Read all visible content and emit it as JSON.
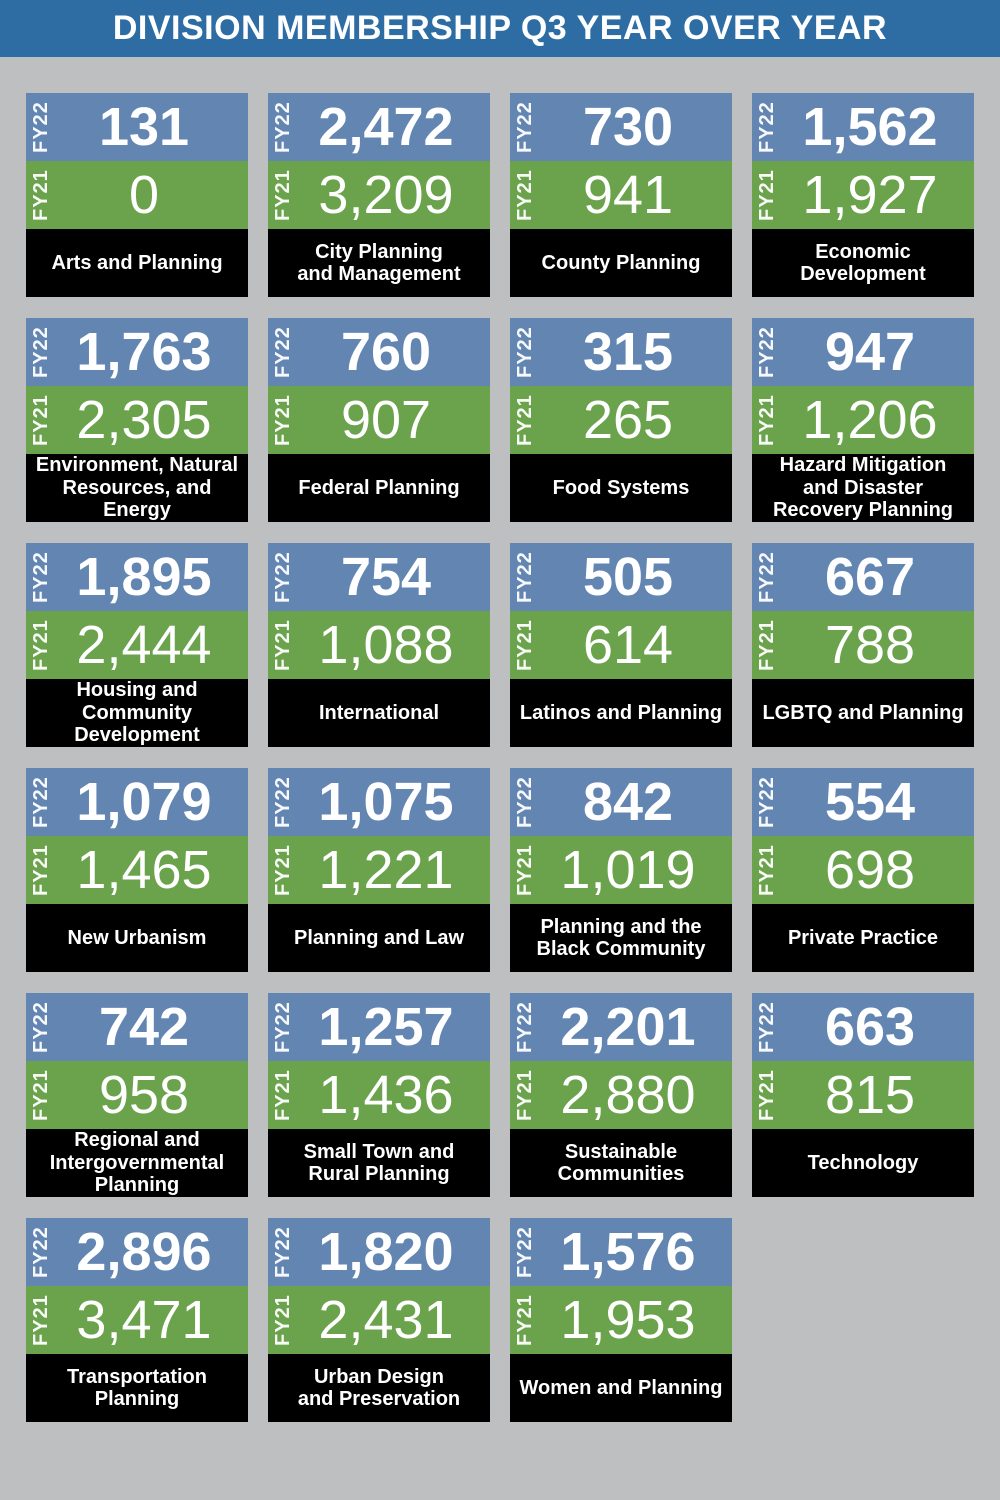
{
  "header": {
    "title": "DIVISION MEMBERSHIP Q3 YEAR OVER YEAR"
  },
  "series_labels": {
    "fy22": "FY22",
    "fy21": "FY21"
  },
  "colors": {
    "background": "#bdbfc1",
    "header_bar": "#2d6da4",
    "fy22_band": "#6285b1",
    "fy21_band": "#6ba24c",
    "name_band": "#000000",
    "text": "#ffffff"
  },
  "chart_data": {
    "type": "table",
    "title": "DIVISION MEMBERSHIP Q3 YEAR OVER YEAR",
    "series": [
      "FY22",
      "FY21"
    ],
    "layout": "4-column grid of cards; each card: FY22 value on blue band, FY21 value on green band, division name on black band",
    "rows": [
      {
        "name": "Arts and Planning",
        "display_name": "Arts and Planning",
        "fy22": 131,
        "fy21": 0,
        "fy22_display": "131",
        "fy21_display": "0"
      },
      {
        "name": "City Planning and Management",
        "display_name": "City Planning\nand Management",
        "fy22": 2472,
        "fy21": 3209,
        "fy22_display": "2,472",
        "fy21_display": "3,209"
      },
      {
        "name": "County Planning",
        "display_name": "County Planning",
        "fy22": 730,
        "fy21": 941,
        "fy22_display": "730",
        "fy21_display": "941"
      },
      {
        "name": "Economic Development",
        "display_name": "Economic\nDevelopment",
        "fy22": 1562,
        "fy21": 1927,
        "fy22_display": "1,562",
        "fy21_display": "1,927"
      },
      {
        "name": "Environment, Natural Resources, and Energy",
        "display_name": "Environment, Natural\nResources, and Energy",
        "fy22": 1763,
        "fy21": 2305,
        "fy22_display": "1,763",
        "fy21_display": "2,305"
      },
      {
        "name": "Federal Planning",
        "display_name": "Federal Planning",
        "fy22": 760,
        "fy21": 907,
        "fy22_display": "760",
        "fy21_display": "907"
      },
      {
        "name": "Food Systems",
        "display_name": "Food Systems",
        "fy22": 315,
        "fy21": 265,
        "fy22_display": "315",
        "fy21_display": "265"
      },
      {
        "name": "Hazard Mitigation and Disaster Recovery Planning",
        "display_name": "Hazard Mitigation\nand Disaster\nRecovery Planning",
        "fy22": 947,
        "fy21": 1206,
        "fy22_display": "947",
        "fy21_display": "1,206"
      },
      {
        "name": "Housing and Community Development",
        "display_name": "Housing and\nCommunity\nDevelopment",
        "fy22": 1895,
        "fy21": 2444,
        "fy22_display": "1,895",
        "fy21_display": "2,444"
      },
      {
        "name": "International",
        "display_name": "International",
        "fy22": 754,
        "fy21": 1088,
        "fy22_display": "754",
        "fy21_display": "1,088"
      },
      {
        "name": "Latinos and Planning",
        "display_name": "Latinos and Planning",
        "fy22": 505,
        "fy21": 614,
        "fy22_display": "505",
        "fy21_display": "614"
      },
      {
        "name": "LGBTQ and Planning",
        "display_name": "LGBTQ and Planning",
        "fy22": 667,
        "fy21": 788,
        "fy22_display": "667",
        "fy21_display": "788"
      },
      {
        "name": "New Urbanism",
        "display_name": "New Urbanism",
        "fy22": 1079,
        "fy21": 1465,
        "fy22_display": "1,079",
        "fy21_display": "1,465"
      },
      {
        "name": "Planning and Law",
        "display_name": "Planning and Law",
        "fy22": 1075,
        "fy21": 1221,
        "fy22_display": "1,075",
        "fy21_display": "1,221"
      },
      {
        "name": "Planning and the Black Community",
        "display_name": "Planning and the\nBlack Community",
        "fy22": 842,
        "fy21": 1019,
        "fy22_display": "842",
        "fy21_display": "1,019"
      },
      {
        "name": "Private Practice",
        "display_name": "Private Practice",
        "fy22": 554,
        "fy21": 698,
        "fy22_display": "554",
        "fy21_display": "698"
      },
      {
        "name": "Regional and Intergovernmental Planning",
        "display_name": "Regional and\nIntergovernmental\nPlanning",
        "fy22": 742,
        "fy21": 958,
        "fy22_display": "742",
        "fy21_display": "958"
      },
      {
        "name": "Small Town and Rural Planning",
        "display_name": "Small Town and\nRural Planning",
        "fy22": 1257,
        "fy21": 1436,
        "fy22_display": "1,257",
        "fy21_display": "1,436"
      },
      {
        "name": "Sustainable Communities",
        "display_name": "Sustainable\nCommunities",
        "fy22": 2201,
        "fy21": 2880,
        "fy22_display": "2,201",
        "fy21_display": "2,880"
      },
      {
        "name": "Technology",
        "display_name": "Technology",
        "fy22": 663,
        "fy21": 815,
        "fy22_display": "663",
        "fy21_display": "815"
      },
      {
        "name": "Transportation Planning",
        "display_name": "Transportation\nPlanning",
        "fy22": 2896,
        "fy21": 3471,
        "fy22_display": "2,896",
        "fy21_display": "3,471"
      },
      {
        "name": "Urban Design and Preservation",
        "display_name": "Urban Design\nand Preservation",
        "fy22": 1820,
        "fy21": 2431,
        "fy22_display": "1,820",
        "fy21_display": "2,431"
      },
      {
        "name": "Women and Planning",
        "display_name": "Women and Planning",
        "fy22": 1576,
        "fy21": 1953,
        "fy22_display": "1,576",
        "fy21_display": "1,953"
      }
    ]
  }
}
